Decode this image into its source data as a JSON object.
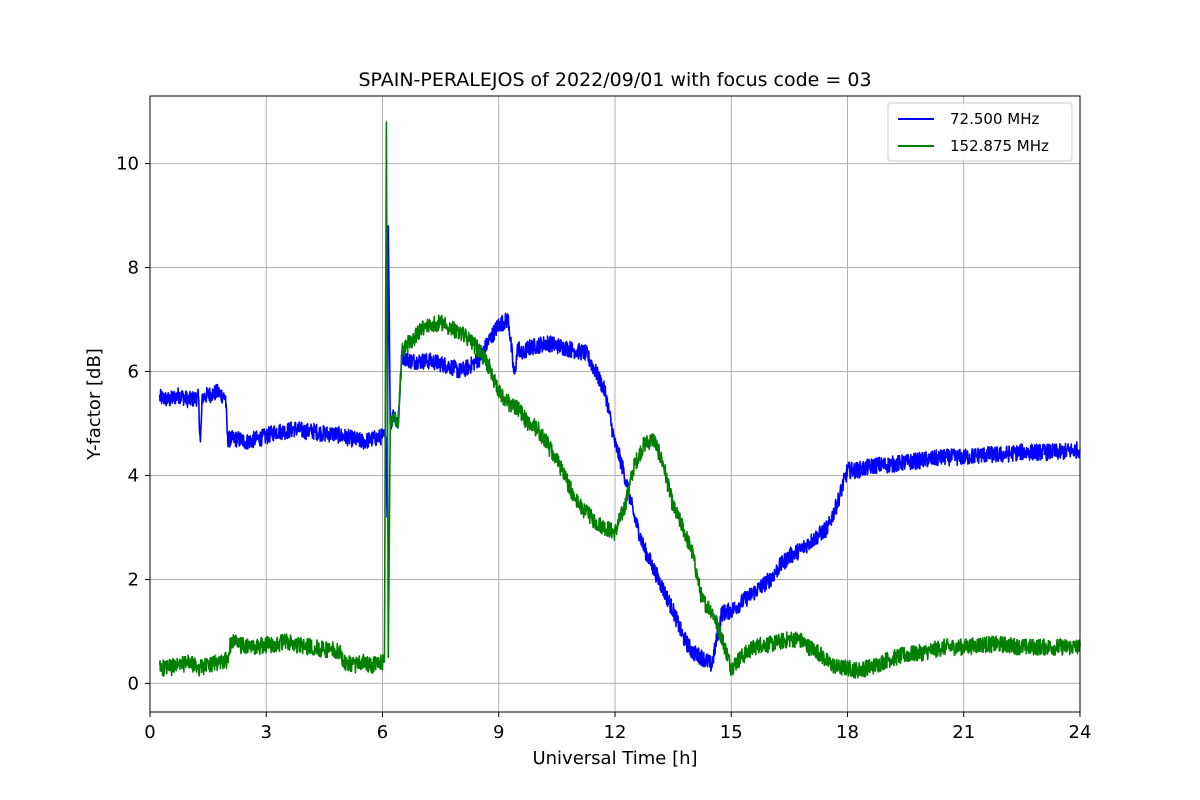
{
  "chart_data": {
    "type": "line",
    "title": "SPAIN-PERALEJOS of 2022/09/01 with focus code = 03",
    "xlabel": "Universal Time [h]",
    "ylabel": "Y-factor [dB]",
    "xlim": [
      0,
      24
    ],
    "ylim": [
      -0.55,
      11.3
    ],
    "xticks": [
      0,
      3,
      6,
      9,
      12,
      15,
      18,
      21,
      24
    ],
    "yticks": [
      0,
      2,
      4,
      6,
      8,
      10
    ],
    "grid": true,
    "legend_position": "top-right",
    "series": [
      {
        "name": "72.500 MHz",
        "color": "#0000ff",
        "x": [
          0.25,
          0.5,
          0.75,
          1.0,
          1.25,
          1.3,
          1.35,
          1.5,
          1.75,
          1.95,
          2.0,
          2.25,
          2.5,
          2.75,
          3.0,
          3.25,
          3.5,
          3.75,
          4.0,
          4.25,
          4.5,
          4.75,
          5.0,
          5.25,
          5.5,
          5.75,
          6.0,
          6.08,
          6.12,
          6.15,
          6.2,
          6.3,
          6.4,
          6.5,
          6.75,
          7.0,
          7.25,
          7.5,
          7.75,
          8.0,
          8.25,
          8.5,
          8.75,
          9.0,
          9.25,
          9.4,
          9.5,
          9.6,
          9.75,
          10.0,
          10.25,
          10.5,
          10.75,
          11.0,
          11.25,
          11.5,
          11.75,
          12.0,
          12.1,
          12.25,
          12.5,
          12.75,
          13.0,
          13.25,
          13.5,
          13.75,
          14.0,
          14.25,
          14.5,
          14.75,
          15.0,
          15.25,
          15.5,
          15.75,
          16.0,
          16.25,
          16.5,
          16.75,
          17.0,
          17.25,
          17.5,
          17.75,
          18.0,
          18.25,
          18.5,
          18.75,
          19.0,
          19.5,
          20.0,
          20.5,
          21.0,
          21.5,
          22.0,
          22.5,
          23.0,
          23.5,
          24.0
        ],
        "y": [
          5.5,
          5.45,
          5.55,
          5.45,
          5.5,
          4.6,
          5.5,
          5.55,
          5.6,
          5.5,
          4.7,
          4.7,
          4.65,
          4.7,
          4.75,
          4.85,
          4.85,
          4.9,
          4.85,
          4.85,
          4.8,
          4.8,
          4.75,
          4.7,
          4.65,
          4.7,
          4.75,
          4.75,
          3.2,
          8.8,
          5.0,
          5.2,
          5.0,
          6.3,
          6.2,
          6.2,
          6.2,
          6.15,
          6.1,
          6.0,
          6.1,
          6.25,
          6.6,
          6.9,
          7.0,
          5.9,
          6.5,
          6.3,
          6.45,
          6.5,
          6.55,
          6.5,
          6.45,
          6.4,
          6.35,
          6.0,
          5.6,
          4.6,
          4.4,
          4.0,
          3.2,
          2.6,
          2.2,
          1.8,
          1.4,
          0.9,
          0.6,
          0.5,
          0.35,
          1.35,
          1.4,
          1.55,
          1.7,
          1.85,
          2.0,
          2.25,
          2.45,
          2.55,
          2.7,
          2.85,
          3.0,
          3.5,
          4.1,
          4.1,
          4.15,
          4.2,
          4.2,
          4.25,
          4.3,
          4.35,
          4.35,
          4.4,
          4.4,
          4.45,
          4.45,
          4.45,
          4.5
        ]
      },
      {
        "name": "152.875 MHz",
        "color": "#008000",
        "x": [
          0.25,
          0.5,
          0.75,
          1.0,
          1.25,
          1.5,
          1.75,
          2.0,
          2.1,
          2.25,
          2.5,
          2.75,
          3.0,
          3.25,
          3.5,
          3.75,
          4.0,
          4.25,
          4.5,
          4.75,
          4.9,
          5.0,
          5.25,
          5.5,
          5.75,
          6.0,
          6.05,
          6.1,
          6.15,
          6.2,
          6.3,
          6.4,
          6.5,
          6.75,
          7.0,
          7.25,
          7.5,
          7.75,
          8.0,
          8.25,
          8.5,
          8.75,
          9.0,
          9.25,
          9.5,
          9.75,
          10.0,
          10.25,
          10.5,
          10.75,
          11.0,
          11.25,
          11.5,
          11.75,
          12.0,
          12.25,
          12.5,
          12.75,
          13.0,
          13.25,
          13.5,
          13.75,
          14.0,
          14.25,
          14.5,
          14.75,
          15.0,
          15.25,
          15.5,
          15.75,
          16.0,
          16.25,
          16.5,
          16.75,
          17.0,
          17.25,
          17.5,
          17.75,
          18.0,
          18.25,
          18.5,
          18.75,
          19.0,
          19.5,
          20.0,
          20.5,
          21.0,
          21.5,
          22.0,
          22.5,
          23.0,
          23.5,
          24.0
        ],
        "y": [
          0.3,
          0.3,
          0.35,
          0.4,
          0.3,
          0.35,
          0.4,
          0.45,
          0.85,
          0.75,
          0.7,
          0.7,
          0.75,
          0.75,
          0.8,
          0.75,
          0.7,
          0.7,
          0.65,
          0.65,
          0.6,
          0.4,
          0.35,
          0.4,
          0.35,
          0.4,
          0.45,
          10.8,
          0.5,
          5.0,
          5.2,
          4.9,
          6.4,
          6.6,
          6.8,
          6.9,
          6.95,
          6.85,
          6.75,
          6.6,
          6.4,
          6.1,
          5.6,
          5.4,
          5.3,
          5.0,
          4.9,
          4.6,
          4.3,
          3.9,
          3.5,
          3.3,
          3.1,
          3.0,
          2.9,
          3.4,
          4.2,
          4.6,
          4.7,
          4.2,
          3.4,
          3.0,
          2.5,
          1.6,
          1.4,
          0.9,
          0.3,
          0.5,
          0.65,
          0.75,
          0.75,
          0.8,
          0.85,
          0.85,
          0.7,
          0.6,
          0.4,
          0.3,
          0.3,
          0.25,
          0.3,
          0.35,
          0.45,
          0.55,
          0.6,
          0.7,
          0.7,
          0.75,
          0.75,
          0.7,
          0.7,
          0.7,
          0.7
        ]
      }
    ]
  }
}
